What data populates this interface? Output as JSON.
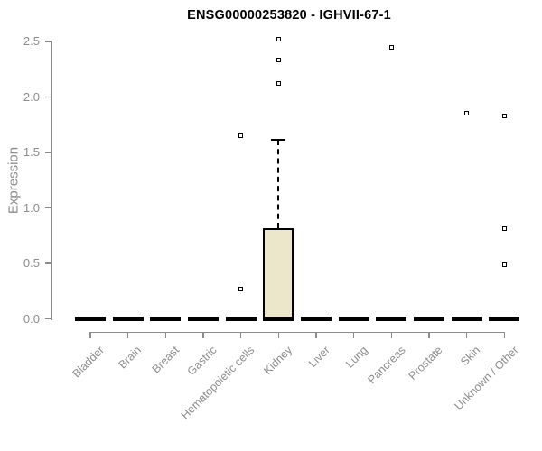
{
  "chart_data": {
    "type": "boxplot",
    "title": "ENSG00000253820 - IGHVII-67-1",
    "xlabel": "",
    "ylabel": "Expression",
    "ylim": [
      0.0,
      2.5
    ],
    "yticks": [
      0.0,
      0.5,
      1.0,
      1.5,
      2.0,
      2.5
    ],
    "ytick_labels": [
      "0.0",
      "0.5",
      "1.0",
      "1.5",
      "2.0",
      "2.5"
    ],
    "grid": false,
    "legend": "none",
    "categories": [
      "Bladder",
      "Brain",
      "Breast",
      "Gastric",
      "Hematopoietic cells",
      "Kidney",
      "Liver",
      "Lung",
      "Pancreas",
      "Prostate",
      "Skin",
      "Unknown / Other"
    ],
    "boxes": [
      {
        "category": "Bladder",
        "median": 0.0,
        "q1": 0.0,
        "q3": 0.0,
        "whisker_low": 0.0,
        "whisker_high": 0.0,
        "outliers": []
      },
      {
        "category": "Brain",
        "median": 0.0,
        "q1": 0.0,
        "q3": 0.0,
        "whisker_low": 0.0,
        "whisker_high": 0.0,
        "outliers": []
      },
      {
        "category": "Breast",
        "median": 0.0,
        "q1": 0.0,
        "q3": 0.0,
        "whisker_low": 0.0,
        "whisker_high": 0.0,
        "outliers": []
      },
      {
        "category": "Gastric",
        "median": 0.0,
        "q1": 0.0,
        "q3": 0.0,
        "whisker_low": 0.0,
        "whisker_high": 0.0,
        "outliers": []
      },
      {
        "category": "Hematopoietic cells",
        "median": 0.0,
        "q1": 0.0,
        "q3": 0.0,
        "whisker_low": 0.0,
        "whisker_high": 0.0,
        "outliers": [
          0.27,
          1.65
        ]
      },
      {
        "category": "Kidney",
        "median": 0.0,
        "q1": 0.0,
        "q3": 0.82,
        "whisker_low": 0.0,
        "whisker_high": 1.61,
        "outliers": [
          2.12,
          2.33,
          2.52
        ]
      },
      {
        "category": "Liver",
        "median": 0.0,
        "q1": 0.0,
        "q3": 0.0,
        "whisker_low": 0.0,
        "whisker_high": 0.0,
        "outliers": []
      },
      {
        "category": "Lung",
        "median": 0.0,
        "q1": 0.0,
        "q3": 0.0,
        "whisker_low": 0.0,
        "whisker_high": 0.0,
        "outliers": []
      },
      {
        "category": "Pancreas",
        "median": 0.0,
        "q1": 0.0,
        "q3": 0.0,
        "whisker_low": 0.0,
        "whisker_high": 0.0,
        "outliers": [
          2.45
        ]
      },
      {
        "category": "Prostate",
        "median": 0.0,
        "q1": 0.0,
        "q3": 0.0,
        "whisker_low": 0.0,
        "whisker_high": 0.0,
        "outliers": []
      },
      {
        "category": "Skin",
        "median": 0.0,
        "q1": 0.0,
        "q3": 0.0,
        "whisker_low": 0.0,
        "whisker_high": 0.0,
        "outliers": [
          1.85
        ]
      },
      {
        "category": "Unknown / Other",
        "median": 0.0,
        "q1": 0.0,
        "q3": 0.0,
        "whisker_low": 0.0,
        "whisker_high": 0.0,
        "outliers": [
          0.49,
          0.81,
          1.83
        ]
      }
    ],
    "colors": {
      "box_fill": "#ECE7CB",
      "box_border": "#000000",
      "median": "#000000",
      "axis": "#8C8C8C",
      "tick_label": "#8C8C8C",
      "title": "#000000",
      "background": "#FFFFFF"
    }
  }
}
